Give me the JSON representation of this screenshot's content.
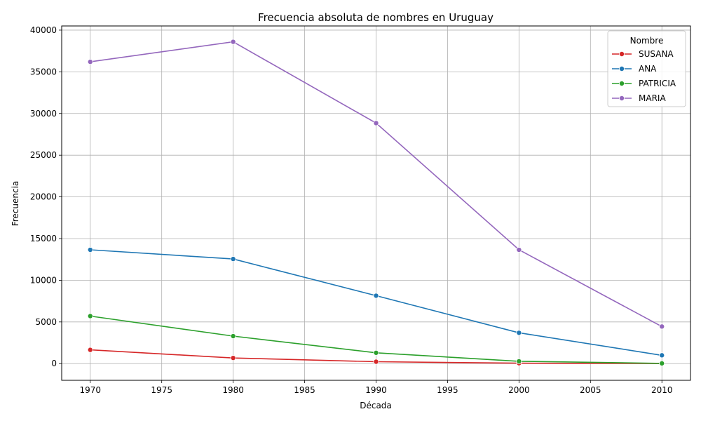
{
  "chart_data": {
    "type": "line",
    "title": "Frecuencia absoluta de nombres en Uruguay",
    "xlabel": "Década",
    "ylabel": "Frecuencia",
    "x": [
      1970,
      1980,
      1990,
      2000,
      2010
    ],
    "xlim": [
      1968,
      2012
    ],
    "ylim": [
      -2000,
      40500
    ],
    "xticks": [
      1970,
      1975,
      1980,
      1985,
      1990,
      1995,
      2000,
      2005,
      2010
    ],
    "yticks": [
      0,
      5000,
      10000,
      15000,
      20000,
      25000,
      30000,
      35000,
      40000
    ],
    "grid": true,
    "legend": {
      "title": "Nombre",
      "placement": "top-right"
    },
    "series": [
      {
        "name": "SUSANA",
        "color": "#d62728",
        "values": [
          1650,
          680,
          230,
          50,
          10
        ]
      },
      {
        "name": "ANA",
        "color": "#1f77b4",
        "values": [
          13650,
          12550,
          8150,
          3700,
          1000
        ]
      },
      {
        "name": "PATRICIA",
        "color": "#2ca02c",
        "values": [
          5700,
          3300,
          1300,
          280,
          30
        ]
      },
      {
        "name": "MARIA",
        "color": "#9467bd",
        "values": [
          36200,
          38600,
          28850,
          13650,
          4450
        ]
      }
    ]
  }
}
